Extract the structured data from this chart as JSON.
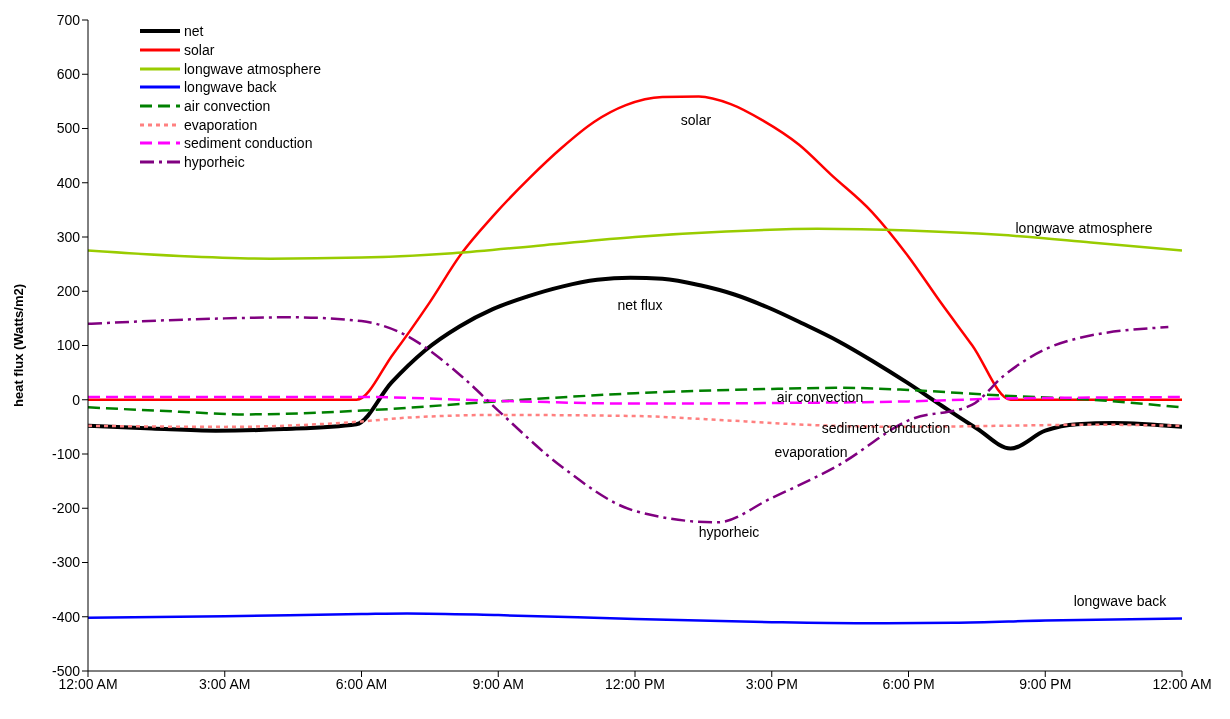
{
  "chart_data": {
    "type": "line",
    "ylabel": "heat flux (Watts/m2)",
    "xlim": [
      0,
      24
    ],
    "xticks": [
      {
        "value": 0,
        "label": "12:00 AM"
      },
      {
        "value": 3,
        "label": "3:00 AM"
      },
      {
        "value": 6,
        "label": "6:00 AM"
      },
      {
        "value": 9,
        "label": "9:00 AM"
      },
      {
        "value": 12,
        "label": "12:00 PM"
      },
      {
        "value": 15,
        "label": "3:00 PM"
      },
      {
        "value": 18,
        "label": "6:00 PM"
      },
      {
        "value": 21,
        "label": "9:00 PM"
      },
      {
        "value": 24,
        "label": "12:00 AM"
      }
    ],
    "ylim": [
      -500,
      700
    ],
    "yticks": [
      -500,
      -400,
      -300,
      -200,
      -100,
      0,
      100,
      200,
      300,
      400,
      500,
      600,
      700
    ],
    "grid": false,
    "legend": "top left",
    "marker": "none",
    "series": [
      {
        "name": "net",
        "color": "#000000",
        "line_style": "solid",
        "x": [
          0,
          1.4,
          2.8,
          4.3,
          5.89,
          6.66,
          7.38,
          8.15,
          8.88,
          9.63,
          10.42,
          11.17,
          11.9,
          12.6,
          13.43,
          14.18,
          14.92,
          15.69,
          16.46,
          17.2,
          17.98,
          18.73,
          19.5,
          20.24,
          21.0,
          21.7,
          22.5,
          24
        ],
        "values": [
          -48,
          -53,
          -57,
          -54,
          -45,
          32,
          90,
          135,
          167,
          190,
          209,
          221,
          225,
          223,
          211,
          194,
          170,
          140,
          108,
          72,
          31,
          -11,
          -53,
          -90,
          -57,
          -45,
          -43,
          -50
        ]
      },
      {
        "name": "solar",
        "color": "#ff0000",
        "line_style": "solid",
        "x": [
          0,
          5.89,
          6.7,
          7.5,
          8.18,
          8.88,
          9.7,
          10.4,
          11.1,
          11.8,
          12.6,
          13.4,
          14.1,
          14.8,
          15.6,
          16.3,
          17.2,
          17.98,
          18.7,
          19.4,
          20.24,
          24
        ],
        "values": [
          0,
          0,
          85,
          180,
          268,
          338,
          410,
          465,
          512,
          543,
          558,
          559,
          545,
          515,
          470,
          415,
          346,
          266,
          180,
          100,
          0,
          0
        ]
      },
      {
        "name": "longwave atmosphere",
        "color": "#99cc00",
        "line_style": "solid",
        "x": [
          0,
          2,
          4,
          6,
          8,
          10,
          12,
          14,
          16,
          18,
          20,
          22,
          24
        ],
        "values": [
          275,
          265,
          260,
          262,
          270,
          285,
          300,
          310,
          315,
          312,
          304,
          290,
          275
        ]
      },
      {
        "name": "longwave back",
        "color": "#0000ff",
        "line_style": "solid",
        "x": [
          0,
          3,
          6,
          7,
          9,
          12,
          15,
          17,
          19,
          21,
          24
        ],
        "values": [
          -402,
          -399,
          -395,
          -394,
          -397,
          -404,
          -410,
          -412,
          -411,
          -407,
          -403
        ]
      },
      {
        "name": "air convection",
        "color": "#008000",
        "line_style": "dashed",
        "x": [
          0,
          2,
          3.5,
          6,
          9,
          12,
          15,
          16.5,
          18,
          20,
          22,
          24
        ],
        "values": [
          -14,
          -22,
          -27,
          -20,
          -3,
          12,
          20,
          22,
          18,
          8,
          0,
          -14
        ]
      },
      {
        "name": "evaporation",
        "color": "#ff8080",
        "line_style": "dotted",
        "x": [
          0,
          3,
          6,
          7,
          9,
          12,
          14,
          16,
          18,
          20,
          22,
          24
        ],
        "values": [
          -48,
          -50,
          -40,
          -33,
          -28,
          -30,
          -38,
          -47,
          -50,
          -48,
          -46,
          -48
        ]
      },
      {
        "name": "sediment conduction",
        "color": "#ff00ff",
        "line_style": "dashed",
        "x": [
          0,
          6,
          9,
          12,
          15,
          18,
          20,
          24
        ],
        "values": [
          5,
          5,
          -2,
          -7,
          -6,
          -3,
          2,
          5
        ]
      },
      {
        "name": "hyporheic",
        "color": "#800080",
        "line_style": "dashdot",
        "x": [
          0,
          3,
          4.5,
          6,
          6.8,
          8.2,
          9,
          10.4,
          12,
          13.8,
          15,
          16.5,
          18,
          19.4,
          20.1,
          21,
          21.7,
          23.7
        ],
        "values": [
          140,
          150,
          152,
          145,
          126,
          43,
          -20,
          -124,
          -205,
          -226,
          -181,
          -119,
          -38,
          -9,
          45,
          93,
          113,
          134
        ]
      }
    ],
    "annotations": [
      "solar",
      "longwave atmosphere",
      "net flux",
      "air convection",
      "sediment conduction",
      "evaporation",
      "hyporheic",
      "longwave back"
    ]
  }
}
